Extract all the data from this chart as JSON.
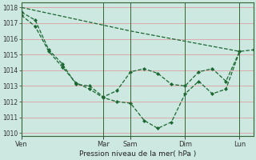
{
  "background_color": "#cce8e0",
  "grid_color": "#dda0a0",
  "line_color": "#1a6630",
  "ylabel_values": [
    1010,
    1011,
    1012,
    1013,
    1014,
    1015,
    1016,
    1017,
    1018
  ],
  "ylim": [
    1009.8,
    1018.3
  ],
  "xlabel": "Pression niveau de la mer( hPa )",
  "xtick_labels": [
    "Ven",
    "Mar",
    "Sam",
    "Dim",
    "Lun"
  ],
  "xtick_positions": [
    0,
    36,
    48,
    72,
    96
  ],
  "xlim": [
    0,
    102
  ],
  "line1_x": [
    0,
    48,
    96
  ],
  "line1_y": [
    1018.0,
    1016.5,
    1015.2
  ],
  "line2_x": [
    0,
    6,
    12,
    18,
    24,
    30,
    36,
    42,
    48,
    54,
    60,
    66,
    72,
    78,
    84,
    90,
    96
  ],
  "line2_y": [
    1017.7,
    1017.2,
    1015.3,
    1014.4,
    1013.1,
    1013.0,
    1012.3,
    1012.7,
    1013.9,
    1014.1,
    1013.8,
    1013.1,
    1013.0,
    1013.9,
    1014.1,
    1013.3,
    1015.2
  ],
  "line3_x": [
    0,
    6,
    12,
    18,
    24,
    30,
    36,
    42,
    48,
    54,
    60,
    66,
    72,
    78,
    84,
    90,
    96,
    102
  ],
  "line3_y": [
    1017.5,
    1016.8,
    1015.2,
    1014.2,
    1013.2,
    1012.8,
    1012.25,
    1012.0,
    1011.9,
    1010.8,
    1010.3,
    1010.7,
    1012.5,
    1013.3,
    1012.5,
    1012.8,
    1015.2,
    1015.3
  ],
  "spine_color": "#336633",
  "tick_color": "#333333",
  "ytick_fontsize": 5.5,
  "xtick_fontsize": 6.0,
  "xlabel_fontsize": 6.5
}
